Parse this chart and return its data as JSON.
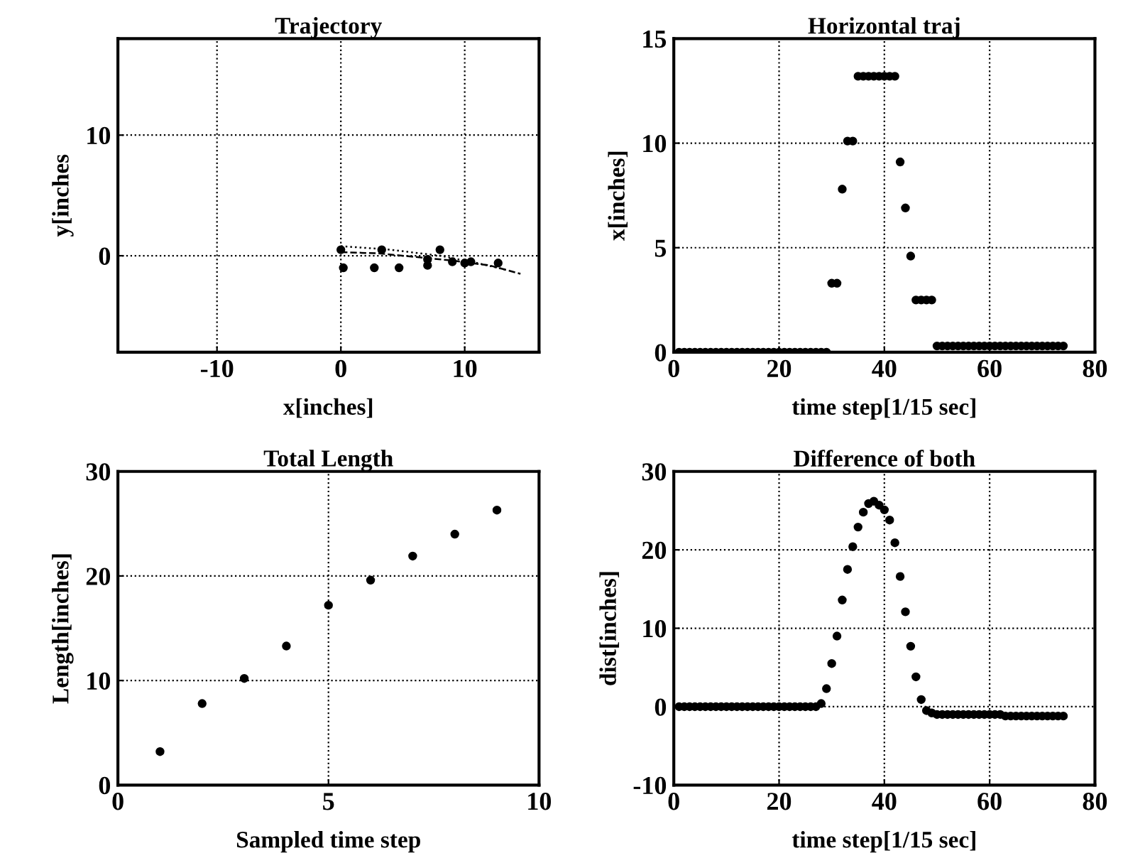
{
  "chart_data": [
    {
      "type": "scatter",
      "title": "Trajectory",
      "xlabel": "x[inches]",
      "ylabel": "y[inches",
      "xlim": [
        -18,
        16
      ],
      "ylim": [
        -8,
        18
      ],
      "xticks": [
        -10,
        0,
        10
      ],
      "yticks": [
        0,
        10
      ],
      "grid": true,
      "series": [
        {
          "type": "line",
          "line_style": "dashed",
          "marker": "none",
          "color": "#000000",
          "x": [
            0,
            3,
            6,
            9,
            12,
            14.5
          ],
          "values": [
            0.3,
            0.2,
            -0.1,
            -0.4,
            -0.8,
            -1.5
          ]
        },
        {
          "type": "line",
          "line_style": "dotted",
          "marker": "none",
          "color": "#000000",
          "x": [
            0,
            4,
            8,
            11,
            13.5
          ],
          "values": [
            0.8,
            0.5,
            0,
            -0.6,
            -1.2
          ]
        },
        {
          "type": "scatter",
          "marker": "circle",
          "color": "#000000",
          "x": [
            0,
            3.3,
            7,
            8,
            9,
            10,
            10.5,
            12.7
          ],
          "values": [
            0.5,
            0.5,
            -0.3,
            0.5,
            -0.5,
            -0.6,
            -0.5,
            -0.6
          ]
        },
        {
          "type": "scatter",
          "marker": "circle",
          "color": "#000000",
          "x": [
            0.2,
            2.7,
            4.7,
            7
          ],
          "values": [
            -1,
            -1,
            -1,
            -0.8
          ]
        }
      ]
    },
    {
      "type": "scatter",
      "title": "Horizontal traj",
      "xlabel": "time step[1/15 sec]",
      "ylabel": "x[inches]",
      "xlim": [
        0,
        80
      ],
      "ylim": [
        0,
        15
      ],
      "xticks": [
        0,
        20,
        40,
        60,
        80
      ],
      "yticks": [
        0,
        5,
        10,
        15
      ],
      "grid": true,
      "marker": "circle",
      "series": [
        {
          "color": "#000000",
          "x": [
            1,
            2,
            3,
            4,
            5,
            6,
            7,
            8,
            9,
            10,
            11,
            12,
            13,
            14,
            15,
            16,
            17,
            18,
            19,
            20,
            21,
            22,
            23,
            24,
            25,
            26,
            27,
            28,
            29,
            30,
            31,
            32,
            33,
            34,
            35,
            36,
            37,
            38,
            39,
            40,
            41,
            42,
            43,
            44,
            45,
            46,
            47,
            48,
            49,
            50,
            51,
            52,
            53,
            54,
            55,
            56,
            57,
            58,
            59,
            60,
            61,
            62,
            63,
            64,
            65,
            66,
            67,
            68,
            69,
            70,
            71,
            72,
            73,
            74
          ],
          "values": [
            0,
            0,
            0,
            0,
            0,
            0,
            0,
            0,
            0,
            0,
            0,
            0,
            0,
            0,
            0,
            0,
            0,
            0,
            0,
            0,
            0,
            0,
            0,
            0,
            0,
            0,
            0,
            0,
            0,
            3.3,
            3.3,
            7.8,
            10.1,
            10.1,
            13.2,
            13.2,
            13.2,
            13.2,
            13.2,
            13.2,
            13.2,
            13.2,
            9.1,
            6.9,
            4.6,
            2.5,
            2.5,
            2.5,
            2.5,
            0.3,
            0.3,
            0.3,
            0.3,
            0.3,
            0.3,
            0.3,
            0.3,
            0.3,
            0.3,
            0.3,
            0.3,
            0.3,
            0.3,
            0.3,
            0.3,
            0.3,
            0.3,
            0.3,
            0.3,
            0.3,
            0.3,
            0.3,
            0.3,
            0.3
          ]
        }
      ]
    },
    {
      "type": "scatter",
      "title": "Total Length",
      "xlabel": "Sampled time step",
      "ylabel": "Length[inches]",
      "xlim": [
        0,
        10
      ],
      "ylim": [
        0,
        30
      ],
      "xticks": [
        0,
        5,
        10
      ],
      "yticks": [
        0,
        10,
        20,
        30
      ],
      "grid": true,
      "marker": "circle",
      "series": [
        {
          "color": "#000000",
          "x": [
            1,
            2,
            3,
            4,
            5,
            6,
            7,
            8,
            9
          ],
          "values": [
            3.2,
            7.8,
            10.2,
            13.3,
            17.2,
            19.6,
            21.9,
            24,
            26.3
          ]
        }
      ]
    },
    {
      "type": "scatter",
      "title": "Difference of both",
      "xlabel": "time step[1/15 sec]",
      "ylabel": "dist[inches]",
      "xlim": [
        0,
        80
      ],
      "ylim": [
        -10,
        30
      ],
      "xticks": [
        0,
        20,
        40,
        60,
        80
      ],
      "yticks": [
        -10,
        0,
        10,
        20,
        30
      ],
      "grid": true,
      "marker": "circle",
      "series": [
        {
          "color": "#000000",
          "x": [
            1,
            2,
            3,
            4,
            5,
            6,
            7,
            8,
            9,
            10,
            11,
            12,
            13,
            14,
            15,
            16,
            17,
            18,
            19,
            20,
            21,
            22,
            23,
            24,
            25,
            26,
            27,
            28,
            29,
            30,
            31,
            32,
            33,
            34,
            35,
            36,
            37,
            38,
            39,
            40,
            41,
            42,
            43,
            44,
            45,
            46,
            47,
            48,
            49,
            50,
            51,
            52,
            53,
            54,
            55,
            56,
            57,
            58,
            59,
            60,
            61,
            62,
            63,
            64,
            65,
            66,
            67,
            68,
            69,
            70,
            71,
            72,
            73,
            74
          ],
          "values": [
            0,
            0,
            0,
            0,
            0,
            0,
            0,
            0,
            0,
            0,
            0,
            0,
            0,
            0,
            0,
            0,
            0,
            0,
            0,
            0,
            0,
            0,
            0,
            0,
            0,
            0,
            0,
            0.4,
            2.3,
            5.5,
            9,
            13.6,
            17.5,
            20.4,
            22.9,
            24.8,
            25.9,
            26.2,
            25.7,
            25.1,
            23.8,
            20.9,
            16.6,
            12.1,
            7.7,
            3.8,
            0.9,
            -0.5,
            -0.8,
            -1,
            -1,
            -1,
            -1,
            -1,
            -1,
            -1,
            -1,
            -1,
            -1,
            -1,
            -1,
            -1,
            -1.2,
            -1.2,
            -1.2,
            -1.2,
            -1.2,
            -1.2,
            -1.2,
            -1.2,
            -1.2,
            -1.2,
            -1.2,
            -1.2
          ]
        }
      ]
    }
  ]
}
